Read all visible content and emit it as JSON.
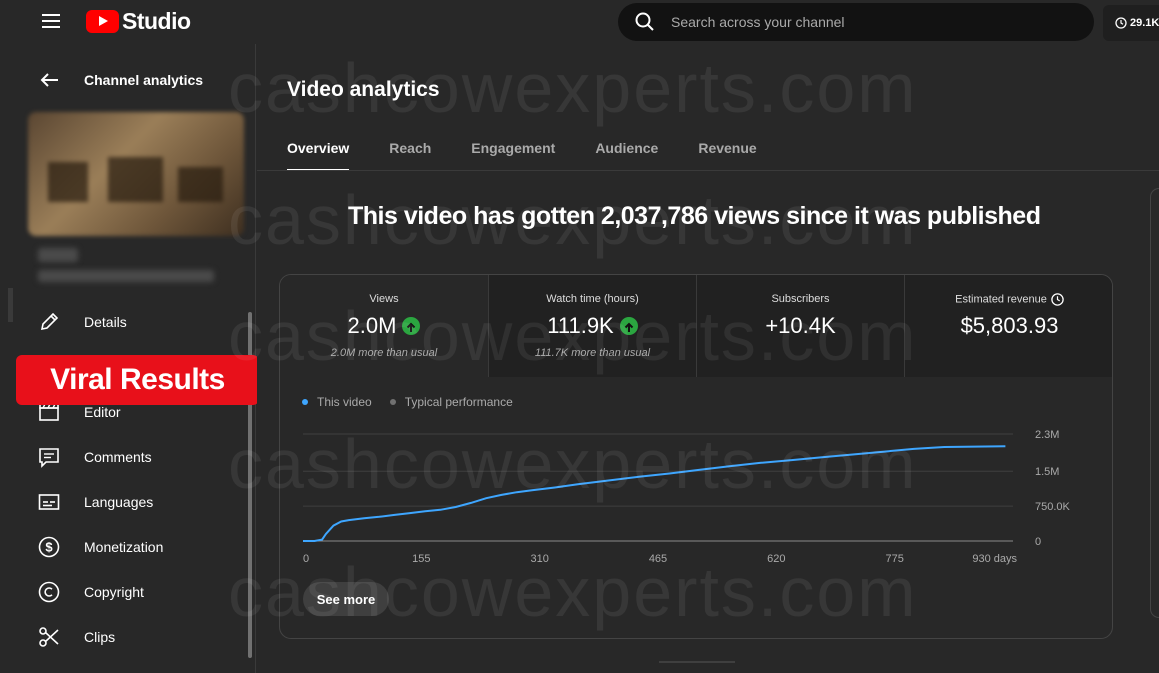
{
  "app": {
    "logo_text": "Studio"
  },
  "search": {
    "placeholder": "Search across your channel"
  },
  "header_chip": {
    "value": "29.1K"
  },
  "sidebar": {
    "back_label": "Channel analytics",
    "items": [
      {
        "label": "Details",
        "icon": "pencil-icon"
      },
      {
        "label": "Editor",
        "icon": "clapperboard-icon"
      },
      {
        "label": "Comments",
        "icon": "comment-icon"
      },
      {
        "label": "Languages",
        "icon": "subtitles-icon"
      },
      {
        "label": "Monetization",
        "icon": "dollar-circle-icon"
      },
      {
        "label": "Copyright",
        "icon": "copyright-icon"
      },
      {
        "label": "Clips",
        "icon": "scissors-icon"
      }
    ]
  },
  "overlay_banner": "Viral Results",
  "main": {
    "title": "Video analytics",
    "tabs": [
      "Overview",
      "Reach",
      "Engagement",
      "Audience",
      "Revenue"
    ],
    "active_tab": "Overview",
    "headline": "This video has gotten 2,037,786 views since it was published"
  },
  "metrics": [
    {
      "name": "Views",
      "value": "2.0M",
      "trend": "up",
      "note": "2.0M more than usual"
    },
    {
      "name": "Watch time (hours)",
      "value": "111.9K",
      "trend": "up",
      "note": "111.7K more than usual"
    },
    {
      "name": "Subscribers",
      "value": "+10.4K",
      "trend": "",
      "note": ""
    },
    {
      "name": "Estimated revenue",
      "value": "$5,803.93",
      "trend": "",
      "note": ""
    }
  ],
  "see_more": "See more",
  "watermark": "cashcowexperts.com",
  "colors": {
    "accent_line": "#3ea6ff",
    "trend_up": "#2ba640",
    "banner": "#e8101a"
  },
  "chart_data": {
    "type": "line",
    "legend": [
      "This video",
      "Typical performance"
    ],
    "x_ticks": [
      "0",
      "155",
      "310",
      "465",
      "620",
      "775",
      "930 days"
    ],
    "y_ticks": [
      "2.3M",
      "1.5M",
      "750.0K",
      "0"
    ],
    "xlim": [
      0,
      930
    ],
    "ylim": [
      0,
      2300000
    ],
    "series": [
      {
        "name": "This video",
        "x": [
          0,
          15,
          25,
          30,
          40,
          50,
          60,
          80,
          100,
          120,
          140,
          160,
          180,
          200,
          220,
          240,
          260,
          280,
          300,
          330,
          360,
          400,
          440,
          480,
          520,
          560,
          600,
          640,
          680,
          720,
          760,
          800,
          840,
          880,
          920
        ],
        "y": [
          0,
          0,
          30000,
          150000,
          330000,
          420000,
          450000,
          490000,
          520000,
          560000,
          600000,
          640000,
          670000,
          730000,
          820000,
          920000,
          990000,
          1050000,
          1090000,
          1150000,
          1220000,
          1300000,
          1380000,
          1450000,
          1530000,
          1610000,
          1680000,
          1740000,
          1800000,
          1860000,
          1920000,
          1980000,
          2020000,
          2030000,
          2037786
        ]
      }
    ],
    "grid": true,
    "legend_position": "top-left"
  }
}
